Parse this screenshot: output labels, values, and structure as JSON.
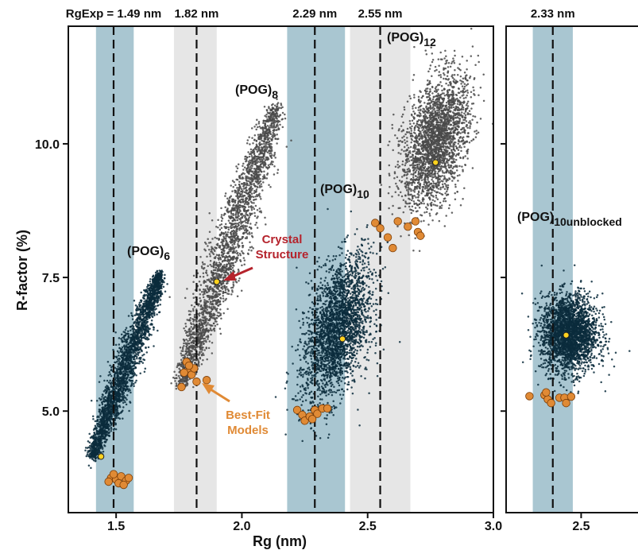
{
  "chart_data": {
    "type": "scatter",
    "xlabel": "Rg (nm)",
    "ylabel": "R-factor (%)",
    "panels": [
      {
        "name": "main",
        "xlim": [
          1.31,
          3.0
        ],
        "ylim": [
          3.1,
          12.2
        ],
        "xticks": [
          "1.5",
          "2.0",
          "2.5",
          "3.0"
        ],
        "xtick_values": [
          1.5,
          2.0,
          2.5,
          3.0
        ]
      },
      {
        "name": "inset",
        "xlim": [
          2.05,
          2.86
        ],
        "ylim": [
          3.1,
          12.2
        ],
        "xticks": [
          "2.5"
        ],
        "xtick_values": [
          2.5
        ]
      }
    ],
    "yticks": [
      "5.0",
      "7.5",
      "10.0"
    ],
    "ytick_values": [
      5.0,
      7.5,
      10.0
    ],
    "rgexp_lines": [
      {
        "panel": 0,
        "label": "RgExp = 1.49 nm",
        "value": 1.49,
        "band": [
          1.42,
          1.57
        ],
        "band_color": "#a9c6d1"
      },
      {
        "panel": 0,
        "label": "1.82 nm",
        "value": 1.82,
        "band": [
          1.73,
          1.9
        ],
        "band_color": "#e6e6e6"
      },
      {
        "panel": 0,
        "label": "2.29 nm",
        "value": 2.29,
        "band": [
          2.18,
          2.41
        ],
        "band_color": "#a9c6d1"
      },
      {
        "panel": 0,
        "label": "2.55 nm",
        "value": 2.55,
        "band": [
          2.43,
          2.67
        ],
        "band_color": "#e6e6e6"
      },
      {
        "panel": 1,
        "label": "2.33 nm",
        "value": 2.33,
        "band": [
          2.21,
          2.45
        ],
        "band_color": "#a9c6d1"
      }
    ],
    "series": [
      {
        "name": "(POG)6",
        "panel": 0,
        "color": "#0b2c3c",
        "center": [
          1.56,
          5.7
        ],
        "cloud": {
          "from": [
            1.41,
            4.2
          ],
          "to": [
            1.67,
            7.5
          ],
          "width": 0.045
        },
        "best_rg": 1.44,
        "best_rf": 4.15,
        "best_fit": [
          [
            1.48,
            3.75
          ],
          [
            1.5,
            3.72
          ],
          [
            1.52,
            3.78
          ],
          [
            1.54,
            3.7
          ],
          [
            1.51,
            3.65
          ],
          [
            1.47,
            3.68
          ],
          [
            1.53,
            3.62
          ],
          [
            1.55,
            3.75
          ],
          [
            1.49,
            3.82
          ]
        ]
      },
      {
        "name": "(POG)8",
        "panel": 0,
        "color": "#4a4a4a",
        "center": [
          1.98,
          8.3
        ],
        "cloud": {
          "from": [
            1.77,
            5.6
          ],
          "to": [
            2.13,
            10.6
          ],
          "width": 0.07
        },
        "best_rg": 1.9,
        "best_rf": 7.42,
        "best_fit": [
          [
            1.78,
            5.92
          ],
          [
            1.79,
            5.75
          ],
          [
            1.8,
            5.68
          ],
          [
            1.77,
            5.72
          ],
          [
            1.82,
            5.55
          ],
          [
            1.76,
            5.45
          ],
          [
            1.86,
            5.58
          ],
          [
            1.81,
            5.8
          ],
          [
            1.79,
            5.85
          ]
        ]
      },
      {
        "name": "(POG)10",
        "panel": 0,
        "color": "#0b2c3c",
        "center": [
          2.38,
          6.6
        ],
        "ellipse": {
          "cx": 2.38,
          "cy": 6.55,
          "rx": 0.15,
          "ry": 1.6,
          "tilt": 0.6
        },
        "best_rg": 2.4,
        "best_rf": 6.35,
        "best_fit": [
          [
            2.22,
            5.02
          ],
          [
            2.24,
            4.93
          ],
          [
            2.25,
            4.82
          ],
          [
            2.27,
            4.9
          ],
          [
            2.29,
            5.02
          ],
          [
            2.3,
            4.95
          ],
          [
            2.32,
            5.05
          ],
          [
            2.34,
            5.05
          ],
          [
            2.28,
            4.85
          ]
        ]
      },
      {
        "name": "(POG)12",
        "panel": 0,
        "color": "#4a4a4a",
        "center": [
          2.78,
          10.1
        ],
        "ellipse": {
          "cx": 2.77,
          "cy": 10.05,
          "rx": 0.15,
          "ry": 1.45,
          "tilt": 0.55
        },
        "best_rg": 2.77,
        "best_rf": 9.65,
        "best_fit": [
          [
            2.53,
            8.52
          ],
          [
            2.55,
            8.42
          ],
          [
            2.58,
            8.25
          ],
          [
            2.6,
            8.05
          ],
          [
            2.62,
            8.55
          ],
          [
            2.66,
            8.45
          ],
          [
            2.7,
            8.35
          ],
          [
            2.71,
            8.28
          ],
          [
            2.69,
            8.55
          ]
        ]
      },
      {
        "name": "(POG)10unblocked",
        "panel": 1,
        "color": "#0b2c3c",
        "center": [
          2.42,
          6.35
        ],
        "ellipse": {
          "cx": 2.43,
          "cy": 6.45,
          "rx": 0.2,
          "ry": 0.85,
          "tilt": 0.0
        },
        "best_rg": 2.41,
        "best_rf": 6.42,
        "best_fit": [
          [
            2.19,
            5.28
          ],
          [
            2.28,
            5.3
          ],
          [
            2.3,
            5.22
          ],
          [
            2.32,
            5.15
          ],
          [
            2.29,
            5.35
          ],
          [
            2.37,
            5.25
          ],
          [
            2.4,
            5.25
          ],
          [
            2.41,
            5.15
          ],
          [
            2.44,
            5.27
          ]
        ]
      }
    ],
    "series_labels": [
      {
        "main": "(POG)",
        "sub": "6",
        "series": 0
      },
      {
        "main": "(POG)",
        "sub": "8",
        "series": 1
      },
      {
        "main": "(POG)",
        "sub": "10",
        "series": 2
      },
      {
        "main": "(POG)",
        "sub": "12",
        "series": 3
      },
      {
        "main": "(POG)",
        "sub": "10unblocked",
        "series": 4
      }
    ],
    "annotations": [
      {
        "text": [
          "Crystal",
          "Structure"
        ],
        "color": "#b5232c",
        "points_to": "crystal structure of (POG)8"
      },
      {
        "text": [
          "Best-Fit",
          "Models"
        ],
        "color": "#e08a35",
        "points_to": "best-fit models of (POG)8"
      }
    ],
    "colors": {
      "crystal_point": "#ffd21f",
      "best_fit_point": "#e08a35",
      "band_blue": "#a9c6d1",
      "band_gray": "#e6e6e6"
    }
  }
}
